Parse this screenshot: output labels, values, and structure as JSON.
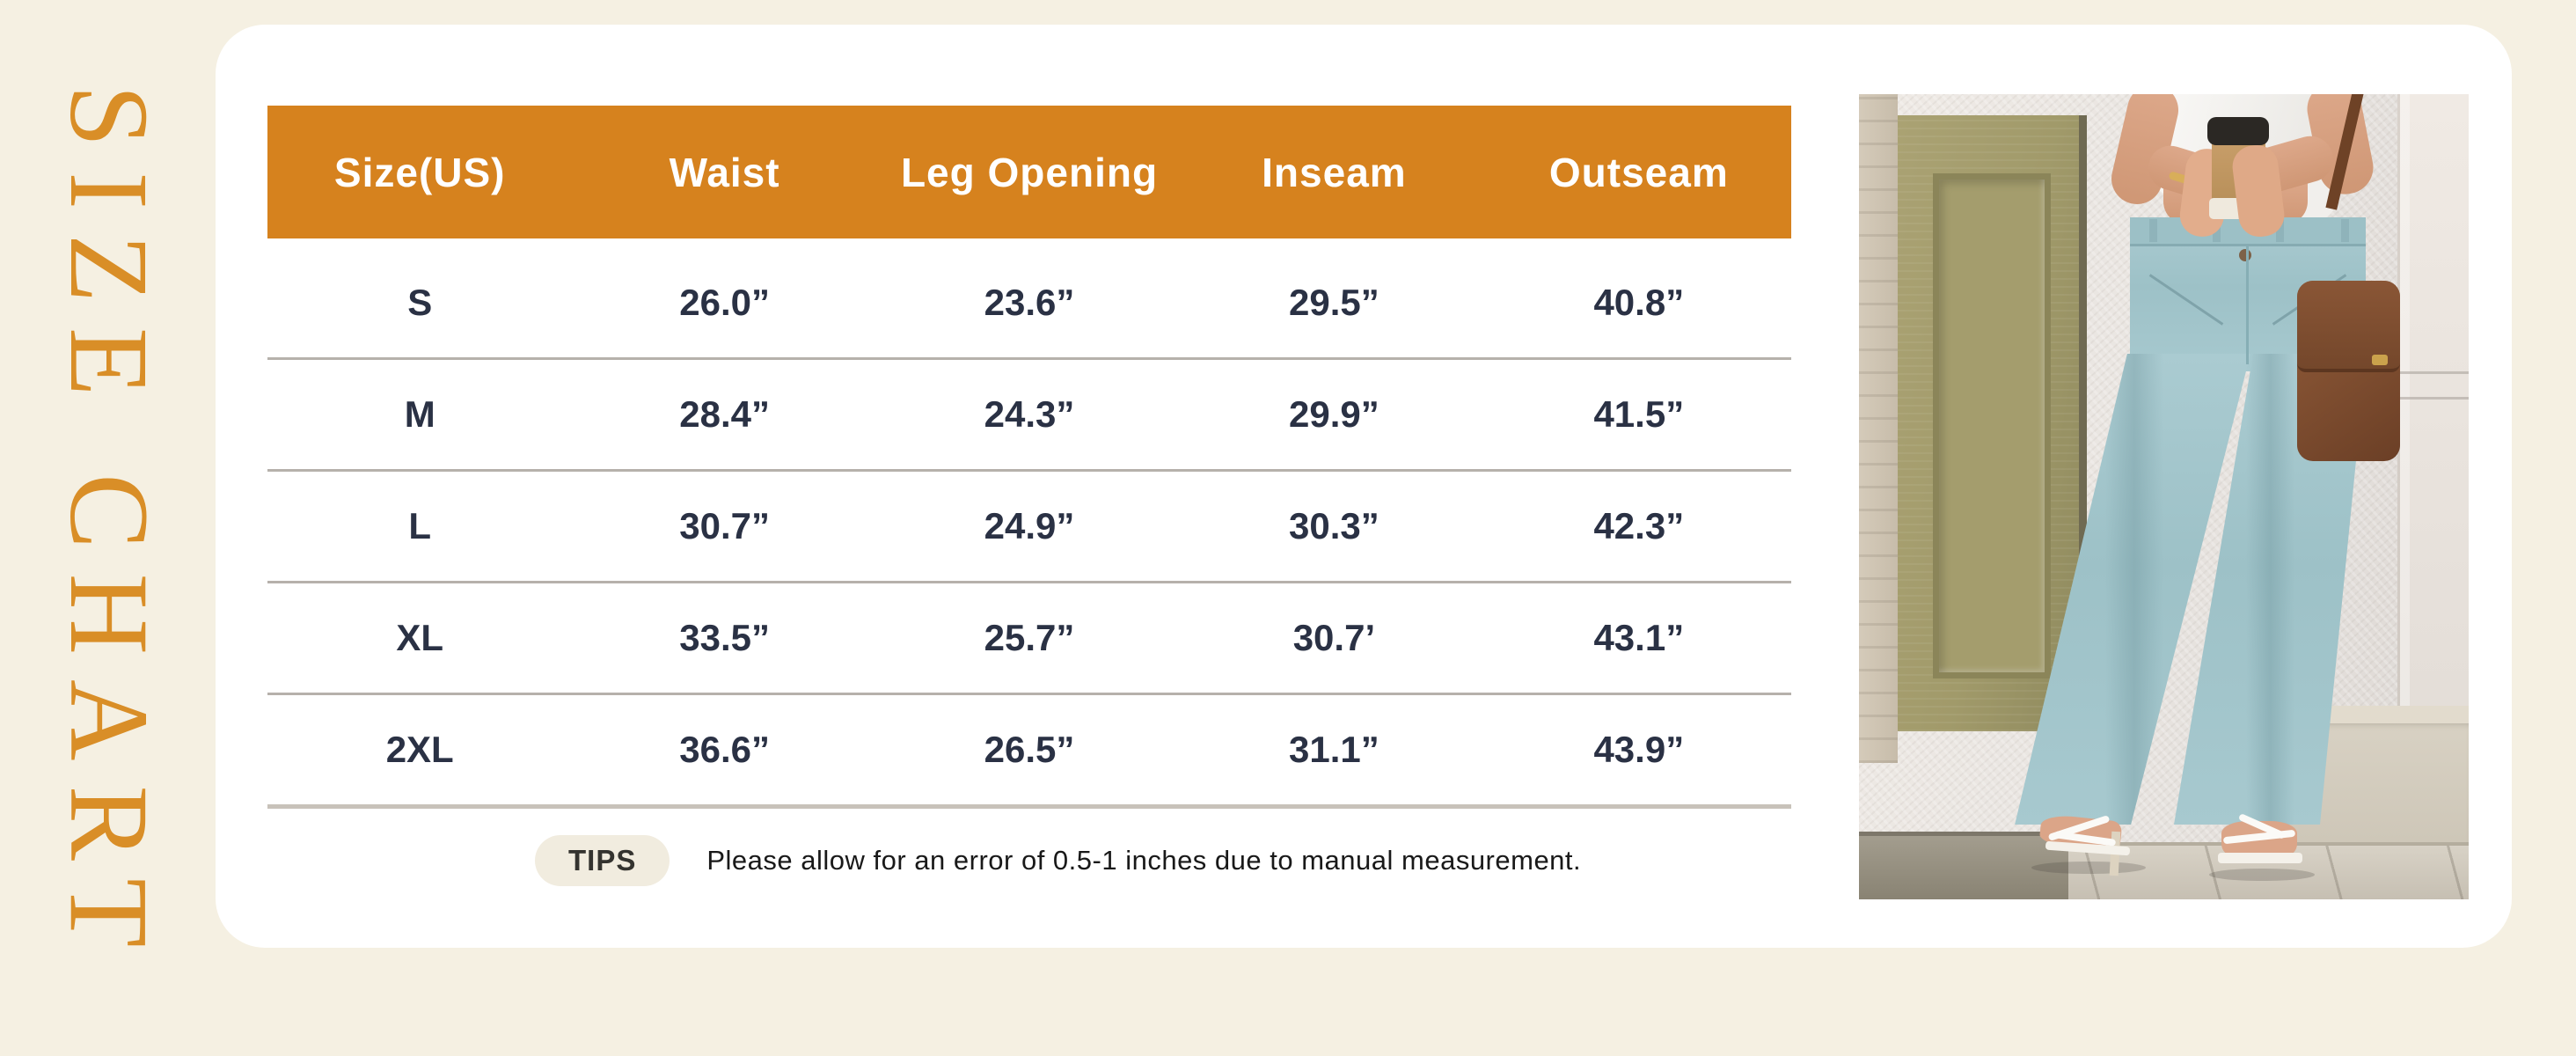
{
  "title_vertical": "SIZE CHART",
  "table": {
    "headers": [
      "Size(US)",
      "Waist",
      "Leg Opening",
      "Inseam",
      "Outseam"
    ],
    "rows": [
      [
        "S",
        "26.0”",
        "23.6”",
        "29.5”",
        "40.8”"
      ],
      [
        "M",
        "28.4”",
        "24.3”",
        "29.9”",
        "41.5”"
      ],
      [
        "L",
        "30.7”",
        "24.9”",
        "30.3”",
        "42.3”"
      ],
      [
        "XL",
        "33.5”",
        "25.7”",
        "30.7’",
        "43.1”"
      ],
      [
        "2XL",
        "36.6”",
        "26.5”",
        "31.1”",
        "43.9”"
      ]
    ]
  },
  "tips": {
    "badge_label": "TIPS",
    "text": "Please allow for an error of 0.5-1 inches due to manual measurement."
  },
  "colors": {
    "header_orange": "#d6821e",
    "title_orange": "#d98e27",
    "navy_text": "#2a3144",
    "page_cream": "#f5f0e2",
    "badge_cream": "#f1ecdf",
    "divider_gray": "#b6b1ab"
  }
}
